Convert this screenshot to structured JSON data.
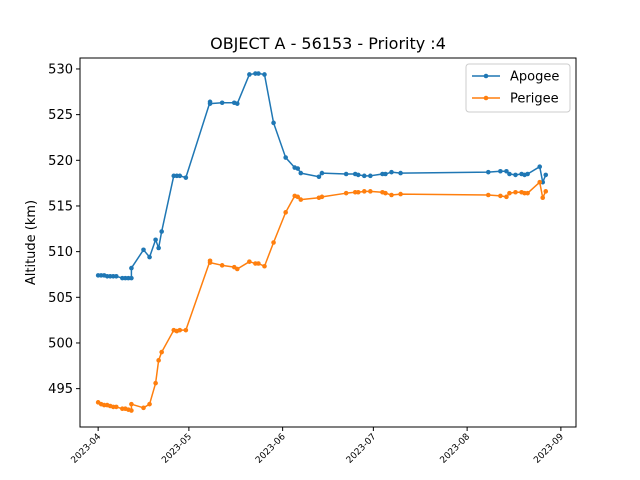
{
  "chart_data": {
    "type": "line",
    "title": "OBJECT A - 56153 - Priority :4",
    "xlabel": "",
    "ylabel": "Altitude (km)",
    "xlim": [
      "2023-03-26",
      "2023-09-06"
    ],
    "ylim": [
      490.8,
      531.2
    ],
    "x_ticks": [
      "2023-04",
      "2023-05",
      "2023-06",
      "2023-07",
      "2023-08",
      "2023-09"
    ],
    "x_tick_dates": [
      "2023-04-01",
      "2023-05-01",
      "2023-06-01",
      "2023-07-01",
      "2023-08-01",
      "2023-09-01"
    ],
    "y_ticks": [
      495,
      500,
      505,
      510,
      515,
      520,
      525,
      530
    ],
    "legend_position": "top-right",
    "grid": false,
    "series": [
      {
        "name": "Apogee",
        "color": "#1f77b4",
        "points": [
          [
            "2023-04-01",
            507.4
          ],
          [
            "2023-04-02",
            507.4
          ],
          [
            "2023-04-03",
            507.4
          ],
          [
            "2023-04-04",
            507.3
          ],
          [
            "2023-04-05",
            507.3
          ],
          [
            "2023-04-06",
            507.3
          ],
          [
            "2023-04-07",
            507.3
          ],
          [
            "2023-04-09",
            507.1
          ],
          [
            "2023-04-10",
            507.1
          ],
          [
            "2023-04-11",
            507.1
          ],
          [
            "2023-04-12",
            507.1
          ],
          [
            "2023-04-12",
            508.2
          ],
          [
            "2023-04-16",
            510.2
          ],
          [
            "2023-04-18",
            509.4
          ],
          [
            "2023-04-20",
            511.3
          ],
          [
            "2023-04-21",
            510.4
          ],
          [
            "2023-04-22",
            512.2
          ],
          [
            "2023-04-26",
            518.3
          ],
          [
            "2023-04-27",
            518.3
          ],
          [
            "2023-04-28",
            518.3
          ],
          [
            "2023-04-30",
            518.1
          ],
          [
            "2023-05-08",
            526.4
          ],
          [
            "2023-05-08",
            526.2
          ],
          [
            "2023-05-12",
            526.3
          ],
          [
            "2023-05-16",
            526.3
          ],
          [
            "2023-05-17",
            526.2
          ],
          [
            "2023-05-21",
            529.4
          ],
          [
            "2023-05-23",
            529.5
          ],
          [
            "2023-05-24",
            529.5
          ],
          [
            "2023-05-26",
            529.4
          ],
          [
            "2023-05-29",
            524.1
          ],
          [
            "2023-06-02",
            520.3
          ],
          [
            "2023-06-05",
            519.2
          ],
          [
            "2023-06-06",
            519.1
          ],
          [
            "2023-06-07",
            518.6
          ],
          [
            "2023-06-13",
            518.2
          ],
          [
            "2023-06-14",
            518.6
          ],
          [
            "2023-06-22",
            518.5
          ],
          [
            "2023-06-25",
            518.5
          ],
          [
            "2023-06-26",
            518.4
          ],
          [
            "2023-06-28",
            518.3
          ],
          [
            "2023-06-30",
            518.3
          ],
          [
            "2023-07-04",
            518.5
          ],
          [
            "2023-07-05",
            518.5
          ],
          [
            "2023-07-07",
            518.7
          ],
          [
            "2023-07-10",
            518.6
          ],
          [
            "2023-08-08",
            518.7
          ],
          [
            "2023-08-12",
            518.8
          ],
          [
            "2023-08-14",
            518.8
          ],
          [
            "2023-08-15",
            518.5
          ],
          [
            "2023-08-17",
            518.4
          ],
          [
            "2023-08-19",
            518.5
          ],
          [
            "2023-08-20",
            518.4
          ],
          [
            "2023-08-21",
            518.5
          ],
          [
            "2023-08-25",
            519.3
          ],
          [
            "2023-08-26",
            517.6
          ],
          [
            "2023-08-27",
            518.4
          ]
        ]
      },
      {
        "name": "Perigee",
        "color": "#ff7f0e",
        "points": [
          [
            "2023-04-01",
            493.5
          ],
          [
            "2023-04-02",
            493.3
          ],
          [
            "2023-04-03",
            493.2
          ],
          [
            "2023-04-04",
            493.2
          ],
          [
            "2023-04-05",
            493.1
          ],
          [
            "2023-04-06",
            493.0
          ],
          [
            "2023-04-07",
            493.0
          ],
          [
            "2023-04-09",
            492.8
          ],
          [
            "2023-04-10",
            492.8
          ],
          [
            "2023-04-11",
            492.7
          ],
          [
            "2023-04-12",
            492.6
          ],
          [
            "2023-04-12",
            493.3
          ],
          [
            "2023-04-16",
            492.9
          ],
          [
            "2023-04-18",
            493.3
          ],
          [
            "2023-04-20",
            495.6
          ],
          [
            "2023-04-21",
            498.1
          ],
          [
            "2023-04-22",
            499.0
          ],
          [
            "2023-04-26",
            501.4
          ],
          [
            "2023-04-27",
            501.3
          ],
          [
            "2023-04-28",
            501.4
          ],
          [
            "2023-04-30",
            501.4
          ],
          [
            "2023-05-08",
            509.0
          ],
          [
            "2023-05-08",
            508.8
          ],
          [
            "2023-05-12",
            508.5
          ],
          [
            "2023-05-16",
            508.3
          ],
          [
            "2023-05-17",
            508.1
          ],
          [
            "2023-05-21",
            508.9
          ],
          [
            "2023-05-23",
            508.7
          ],
          [
            "2023-05-24",
            508.7
          ],
          [
            "2023-05-26",
            508.4
          ],
          [
            "2023-05-29",
            511.0
          ],
          [
            "2023-06-02",
            514.3
          ],
          [
            "2023-06-05",
            516.1
          ],
          [
            "2023-06-06",
            516.0
          ],
          [
            "2023-06-07",
            515.7
          ],
          [
            "2023-06-13",
            515.9
          ],
          [
            "2023-06-14",
            516.0
          ],
          [
            "2023-06-22",
            516.4
          ],
          [
            "2023-06-25",
            516.5
          ],
          [
            "2023-06-26",
            516.5
          ],
          [
            "2023-06-28",
            516.6
          ],
          [
            "2023-06-30",
            516.6
          ],
          [
            "2023-07-04",
            516.5
          ],
          [
            "2023-07-05",
            516.4
          ],
          [
            "2023-07-07",
            516.2
          ],
          [
            "2023-07-10",
            516.3
          ],
          [
            "2023-08-08",
            516.2
          ],
          [
            "2023-08-12",
            516.1
          ],
          [
            "2023-08-14",
            516.0
          ],
          [
            "2023-08-15",
            516.4
          ],
          [
            "2023-08-17",
            516.5
          ],
          [
            "2023-08-19",
            516.5
          ],
          [
            "2023-08-20",
            516.4
          ],
          [
            "2023-08-21",
            516.4
          ],
          [
            "2023-08-25",
            517.6
          ],
          [
            "2023-08-26",
            515.9
          ],
          [
            "2023-08-27",
            516.6
          ]
        ]
      }
    ]
  }
}
